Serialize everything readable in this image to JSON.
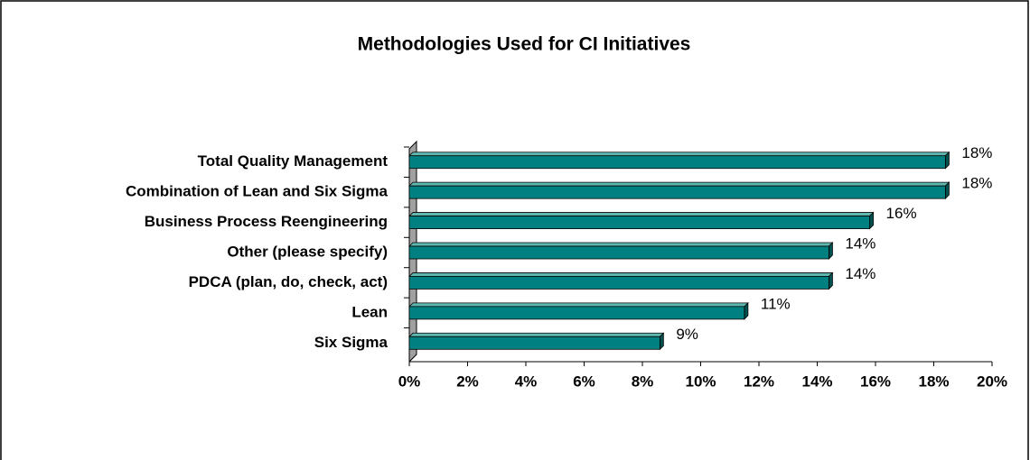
{
  "chart_data": {
    "type": "bar",
    "orientation": "horizontal",
    "title": "Methodologies Used for CI Initiatives",
    "categories": [
      "Total Quality Management",
      "Combination of Lean and Six Sigma",
      "Business Process Reengineering",
      "Other (please specify)",
      "PDCA (plan, do, check, act)",
      "Lean",
      "Six Sigma"
    ],
    "values": [
      18.4,
      18.4,
      15.8,
      14.4,
      14.4,
      11.5,
      8.6
    ],
    "value_labels": [
      "18%",
      "18%",
      "16%",
      "14%",
      "14%",
      "11%",
      "9%"
    ],
    "color": "#008080",
    "xlim": [
      0,
      20
    ],
    "xticks": [
      {
        "value": 0,
        "label": "0%"
      },
      {
        "value": 2,
        "label": "2%"
      },
      {
        "value": 4,
        "label": "4%"
      },
      {
        "value": 6,
        "label": "6%"
      },
      {
        "value": 8,
        "label": "8%"
      },
      {
        "value": 10,
        "label": "10%"
      },
      {
        "value": 12,
        "label": "12%"
      },
      {
        "value": 14,
        "label": "14%"
      },
      {
        "value": 16,
        "label": "16%"
      },
      {
        "value": 18,
        "label": "18%"
      },
      {
        "value": 20,
        "label": "20%"
      }
    ],
    "grid": false
  }
}
